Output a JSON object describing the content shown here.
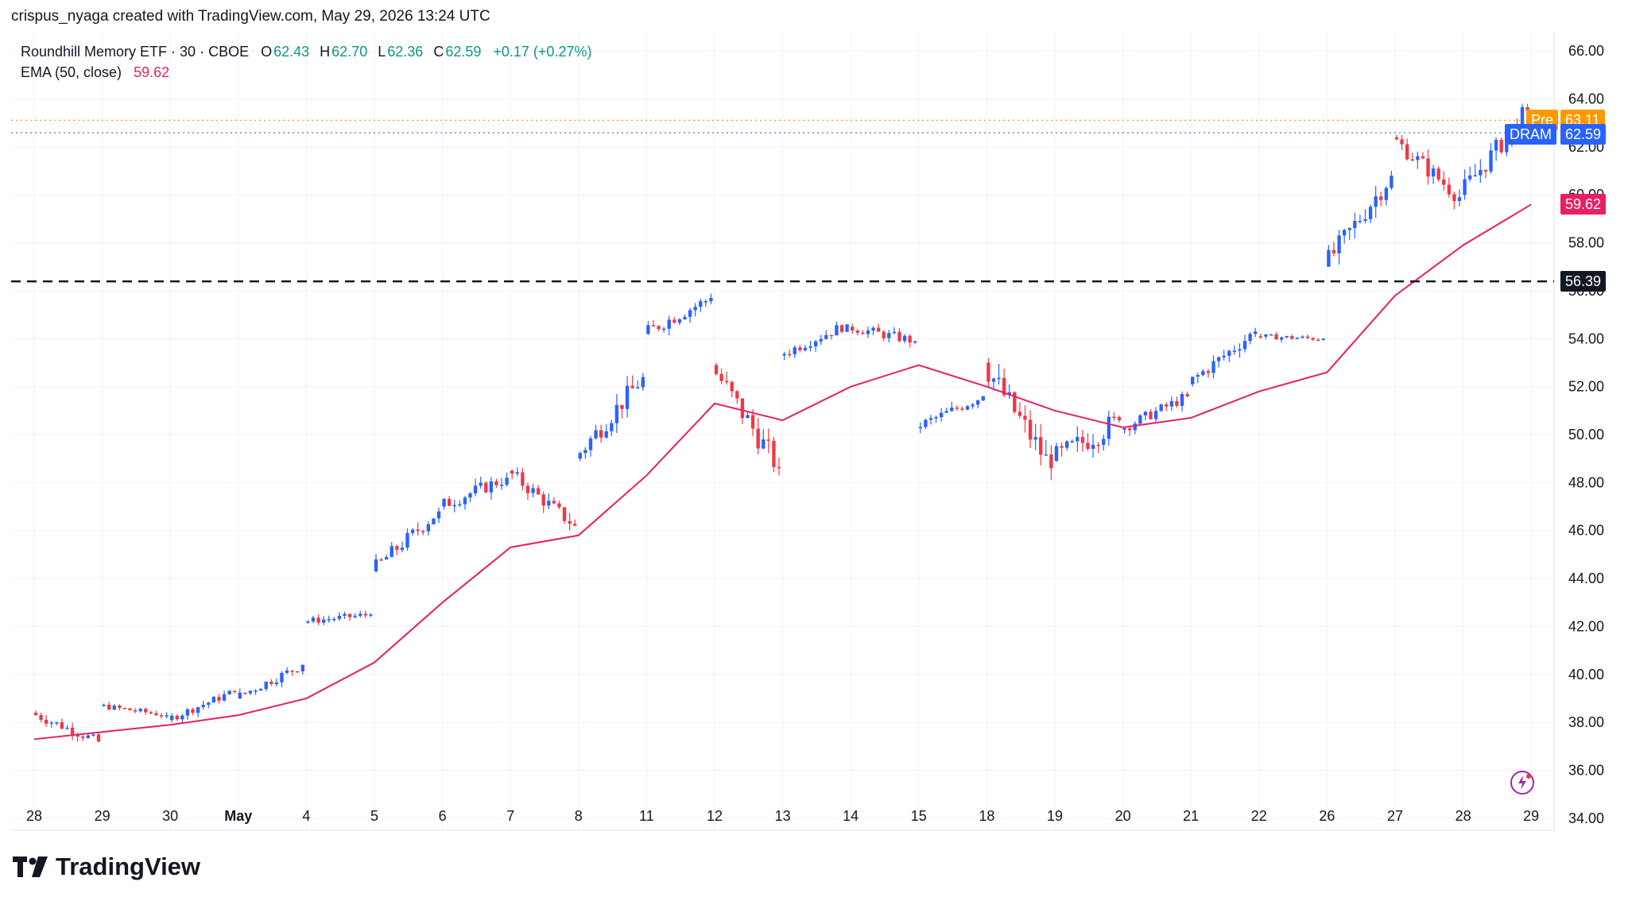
{
  "caption": "crispus_nyaga created with TradingView.com, May 29, 2026 13:24 UTC",
  "legend": {
    "symbol": "Roundhill Memory ETF · 30 · CBOE",
    "o_label": "O",
    "o_value": "62.43",
    "h_label": "H",
    "h_value": "62.70",
    "l_label": "L",
    "l_value": "62.36",
    "c_label": "C",
    "c_value": "62.59",
    "change": "+0.17 (+0.27%)",
    "ema_label": "EMA (50, close)",
    "ema_value": "59.62"
  },
  "tags": {
    "pre_label": "Pre",
    "pre_value": "63.11",
    "dram_label": "DRAM",
    "dram_value": "62.59",
    "ema_value": "59.62",
    "level_value": "56.39"
  },
  "logo_text": "TradingView",
  "colors": {
    "up": "#2962ff",
    "down": "#f23645",
    "ema": "#e91e63",
    "pre": "#ff9800",
    "dram": "#2962ff",
    "level": "#131722"
  },
  "chart_data": {
    "type": "line",
    "ylim": [
      33.5,
      66.8
    ],
    "y_ticks": [
      "34.00",
      "36.00",
      "38.00",
      "40.00",
      "42.00",
      "44.00",
      "46.00",
      "48.00",
      "50.00",
      "52.00",
      "54.00",
      "56.00",
      "58.00",
      "60.00",
      "62.00",
      "64.00",
      "66.00"
    ],
    "x_ticks": [
      "28",
      "29",
      "30",
      "May",
      "4",
      "5",
      "6",
      "7",
      "8",
      "11",
      "12",
      "13",
      "14",
      "15",
      "18",
      "19",
      "20",
      "21",
      "22",
      "26",
      "27",
      "28",
      "29"
    ],
    "horizontal_level": 56.39,
    "pre_price": 63.11,
    "last_price": 62.59,
    "price_session_anchors": [
      {
        "session": "28",
        "open": 38.4,
        "close": 37.2,
        "low": 36.6,
        "high": 38.5
      },
      {
        "session": "29",
        "open": 38.7,
        "close": 38.3,
        "low": 37.9,
        "high": 39.0
      },
      {
        "session": "30",
        "open": 38.1,
        "close": 39.3,
        "low": 37.9,
        "high": 39.4
      },
      {
        "session": "May",
        "open": 39.0,
        "close": 40.4,
        "low": 38.9,
        "high": 40.7
      },
      {
        "session": "4",
        "open": 42.2,
        "close": 42.5,
        "low": 42.0,
        "high": 43.3
      },
      {
        "session": "5",
        "open": 44.3,
        "close": 46.8,
        "low": 44.2,
        "high": 47.0
      },
      {
        "session": "6",
        "open": 47.0,
        "close": 48.2,
        "low": 46.4,
        "high": 49.0
      },
      {
        "session": "7",
        "open": 48.5,
        "close": 46.2,
        "low": 46.0,
        "high": 48.8
      },
      {
        "session": "8",
        "open": 49.0,
        "close": 52.4,
        "low": 48.9,
        "high": 52.8
      },
      {
        "session": "11",
        "open": 54.2,
        "close": 55.7,
        "low": 54.0,
        "high": 56.5
      },
      {
        "session": "12",
        "open": 52.9,
        "close": 48.6,
        "low": 48.3,
        "high": 53.0
      },
      {
        "session": "13",
        "open": 53.3,
        "close": 54.6,
        "low": 52.9,
        "high": 54.9
      },
      {
        "session": "14",
        "open": 54.5,
        "close": 53.9,
        "low": 53.2,
        "high": 55.1
      },
      {
        "session": "15",
        "open": 50.3,
        "close": 51.6,
        "low": 49.8,
        "high": 51.8
      },
      {
        "session": "18",
        "open": 53.0,
        "close": 48.6,
        "low": 48.1,
        "high": 53.2
      },
      {
        "session": "19",
        "open": 48.9,
        "close": 50.6,
        "low": 46.4,
        "high": 51.0
      },
      {
        "session": "20",
        "open": 50.2,
        "close": 51.6,
        "low": 49.7,
        "high": 51.8
      },
      {
        "session": "21",
        "open": 52.1,
        "close": 54.3,
        "low": 52.0,
        "high": 54.6
      },
      {
        "session": "22",
        "open": 54.1,
        "close": 54.0,
        "low": 53.4,
        "high": 54.4
      },
      {
        "session": "26",
        "open": 57.0,
        "close": 60.8,
        "low": 57.0,
        "high": 61.0
      },
      {
        "session": "27",
        "open": 62.4,
        "close": 59.9,
        "low": 59.2,
        "high": 62.5
      },
      {
        "session": "28",
        "open": 60.0,
        "close": 63.5,
        "low": 59.8,
        "high": 63.8
      }
    ],
    "ema": {
      "name": "EMA (50, close)",
      "x": [
        "28",
        "29",
        "30",
        "May",
        "4",
        "5",
        "6",
        "7",
        "8",
        "11",
        "12",
        "13",
        "14",
        "15",
        "18",
        "19",
        "20",
        "21",
        "22",
        "26",
        "27",
        "28",
        "29"
      ],
      "values": [
        37.3,
        37.6,
        37.9,
        38.3,
        39.0,
        40.5,
        43.0,
        45.3,
        45.8,
        48.3,
        51.3,
        50.6,
        52.0,
        52.9,
        52.0,
        51.0,
        50.3,
        50.7,
        51.8,
        52.6,
        55.8,
        57.9,
        59.6
      ]
    },
    "grid": true,
    "legend_position": "top-left"
  }
}
